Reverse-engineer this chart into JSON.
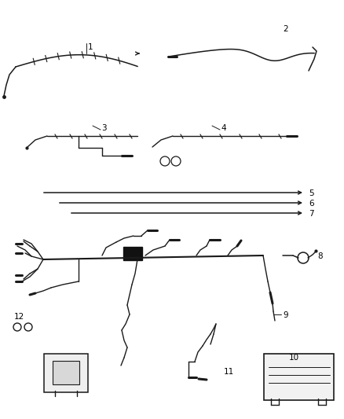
{
  "bg_color": "#ffffff",
  "line_color": "#1a1a1a",
  "label_color": "#000000",
  "figsize": [
    4.38,
    5.33
  ],
  "dpi": 100
}
